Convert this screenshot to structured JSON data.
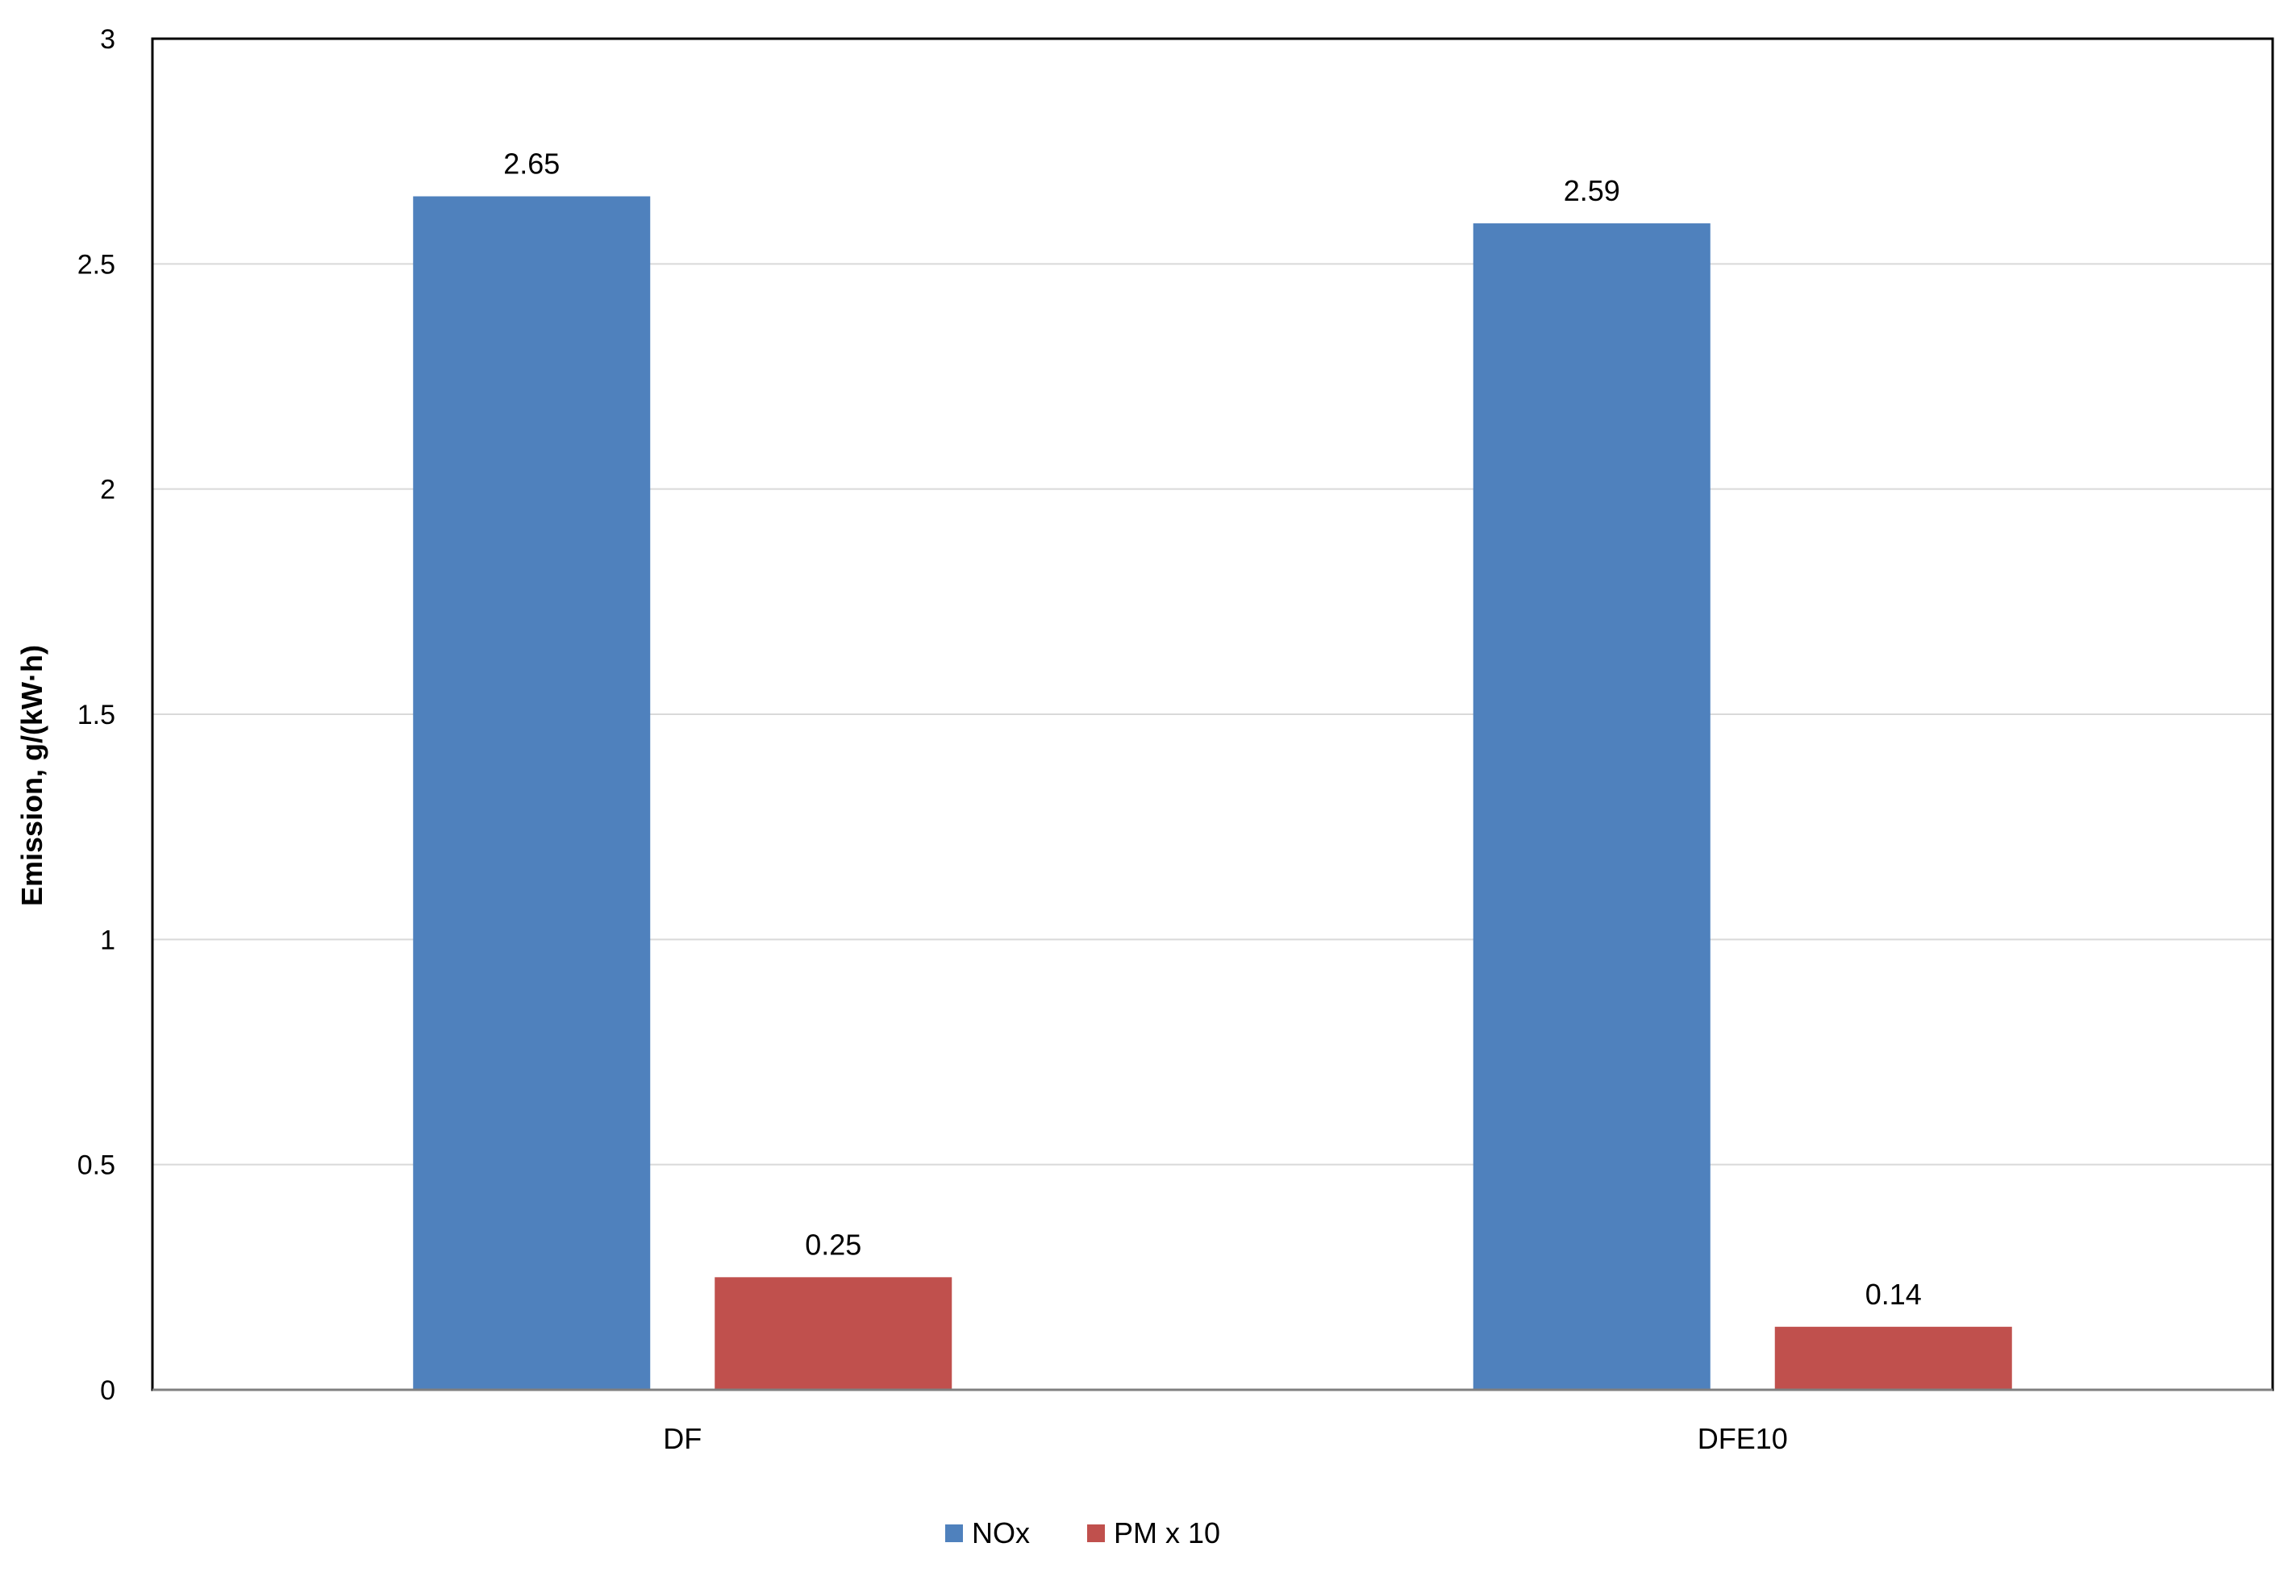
{
  "chart_data": {
    "type": "bar",
    "title": "",
    "xlabel": "",
    "ylabel": "Emission, g/(kW·h)",
    "ylim": [
      0,
      3
    ],
    "yticks": [
      "0",
      "0.5",
      "1",
      "1.5",
      "2",
      "2.5",
      "3"
    ],
    "categories": [
      "DF",
      "DFE10"
    ],
    "series": [
      {
        "name": "NOx",
        "color": "#4F81BD",
        "values": [
          2.65,
          2.59
        ],
        "labels": [
          "2.65",
          "2.59"
        ]
      },
      {
        "name": "PM x 10",
        "color": "#C0504D",
        "values": [
          0.25,
          0.14
        ],
        "labels": [
          "0.25",
          "0.14"
        ]
      }
    ],
    "grid": true,
    "legend_position": "bottom-center"
  }
}
